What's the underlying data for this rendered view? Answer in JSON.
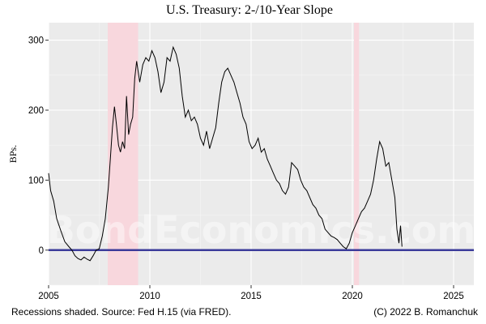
{
  "chart_data": {
    "type": "line",
    "title": "U.S. Treasury: 2-/10-Year Slope",
    "ylabel": "BPs.",
    "xlabel": "",
    "xlim": [
      2005,
      2026
    ],
    "ylim": [
      -50,
      325
    ],
    "x_ticks": [
      2005,
      2010,
      2015,
      2020,
      2025
    ],
    "x_tick_labels": [
      "2005",
      "2010",
      "2015",
      "2020",
      "2025"
    ],
    "y_ticks": [
      0,
      100,
      200,
      300
    ],
    "y_tick_labels": [
      "0",
      "100",
      "200",
      "300"
    ],
    "grid": true,
    "zero_line": {
      "value": 0,
      "color": "#3b3b9a"
    },
    "recessions": [
      {
        "start": 2007.92,
        "end": 2009.42
      },
      {
        "start": 2020.08,
        "end": 2020.33
      }
    ],
    "recession_color": "#f8d7dd",
    "line_color": "#000000",
    "watermark": "BondEconomics.com",
    "footer_left": "Recessions shaded. Source: Fed H.15 (via FRED).",
    "footer_right": "(C) 2022 B. Romanchuk",
    "series": [
      {
        "x": [
          2005.0,
          2005.1,
          2005.25,
          2005.4,
          2005.6,
          2005.8,
          2006.0,
          2006.15,
          2006.3,
          2006.45,
          2006.6,
          2006.75,
          2006.9,
          2007.05,
          2007.2,
          2007.35,
          2007.5,
          2007.65,
          2007.8,
          2007.95,
          2008.05,
          2008.15,
          2008.25,
          2008.35,
          2008.45,
          2008.55,
          2008.65,
          2008.75,
          2008.85,
          2008.95,
          2009.05,
          2009.15,
          2009.25,
          2009.35,
          2009.5,
          2009.65,
          2009.8,
          2009.95,
          2010.1,
          2010.25,
          2010.4,
          2010.55,
          2010.7,
          2010.85,
          2011.0,
          2011.15,
          2011.3,
          2011.45,
          2011.6,
          2011.75,
          2011.9,
          2012.05,
          2012.2,
          2012.35,
          2012.5,
          2012.65,
          2012.8,
          2012.95,
          2013.1,
          2013.25,
          2013.4,
          2013.55,
          2013.7,
          2013.85,
          2014.0,
          2014.15,
          2014.3,
          2014.45,
          2014.6,
          2014.75,
          2014.9,
          2015.05,
          2015.2,
          2015.35,
          2015.5,
          2015.65,
          2015.8,
          2015.95,
          2016.1,
          2016.25,
          2016.4,
          2016.55,
          2016.7,
          2016.85,
          2017.0,
          2017.15,
          2017.3,
          2017.45,
          2017.6,
          2017.75,
          2017.9,
          2018.05,
          2018.2,
          2018.35,
          2018.5,
          2018.65,
          2018.8,
          2018.95,
          2019.1,
          2019.25,
          2019.4,
          2019.55,
          2019.7,
          2019.85,
          2020.0,
          2020.15,
          2020.3,
          2020.45,
          2020.6,
          2020.75,
          2020.9,
          2021.05,
          2021.2,
          2021.35,
          2021.5,
          2021.65,
          2021.8,
          2021.95,
          2022.1,
          2022.2,
          2022.3,
          2022.38,
          2022.45
        ],
        "y": [
          110,
          85,
          70,
          45,
          28,
          12,
          5,
          0,
          -8,
          -12,
          -14,
          -10,
          -13,
          -15,
          -8,
          0,
          2,
          20,
          45,
          90,
          130,
          175,
          205,
          180,
          150,
          140,
          155,
          145,
          220,
          165,
          180,
          190,
          245,
          270,
          240,
          265,
          275,
          270,
          285,
          275,
          255,
          225,
          240,
          275,
          270,
          290,
          280,
          260,
          220,
          190,
          200,
          185,
          190,
          180,
          160,
          150,
          170,
          145,
          160,
          175,
          210,
          240,
          255,
          260,
          250,
          240,
          225,
          210,
          190,
          180,
          155,
          145,
          150,
          160,
          140,
          145,
          130,
          120,
          110,
          100,
          95,
          85,
          80,
          90,
          125,
          120,
          115,
          100,
          90,
          85,
          75,
          65,
          60,
          50,
          45,
          30,
          25,
          20,
          18,
          15,
          10,
          5,
          2,
          10,
          25,
          35,
          45,
          55,
          60,
          70,
          80,
          100,
          130,
          155,
          145,
          120,
          125,
          100,
          75,
          30,
          10,
          35,
          5
        ]
      }
    ]
  }
}
